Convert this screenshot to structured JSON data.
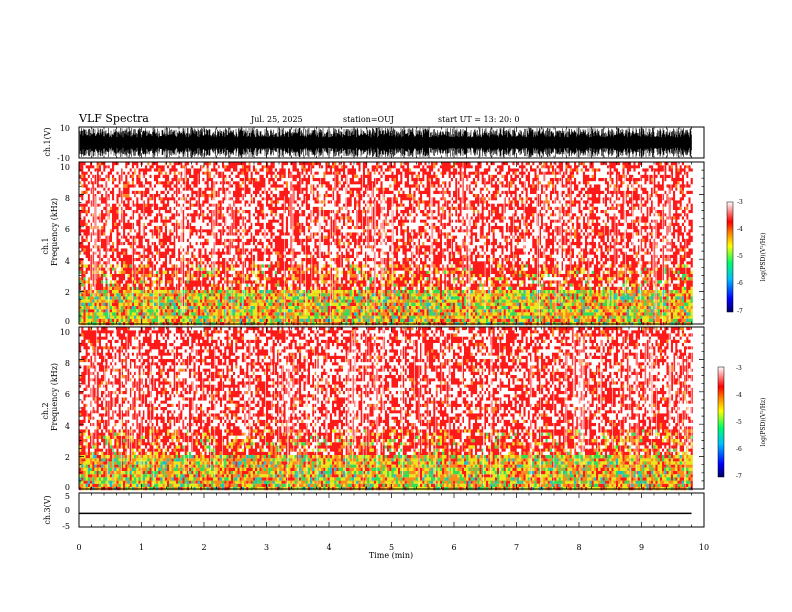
{
  "header": {
    "title": "VLF Spectra",
    "date": "Jul. 25, 2025",
    "station": "station=OUJ",
    "start": "start UT =  13: 20: 0"
  },
  "chart_data": {
    "type": "heatmap",
    "title": "VLF Spectra",
    "xlabel": "Time (min)",
    "x_range": [
      0,
      10
    ],
    "x_ticks": [
      "0",
      "1",
      "2",
      "3",
      "4",
      "5",
      "6",
      "7",
      "8",
      "9",
      "10"
    ],
    "data_end_min": 9.8,
    "panels": [
      {
        "id": "ch1_waveform",
        "type": "line",
        "ylabel": "ch.1(V)",
        "y_range": [
          -10,
          10
        ],
        "y_ticks": [
          "10",
          "-10"
        ],
        "description_value": "dense oscillating waveform saturating near +/-10 V"
      },
      {
        "id": "ch1_spectrogram",
        "type": "heatmap",
        "ylabel_line1": "ch.1",
        "ylabel_line2": "Frequency (kHz)",
        "y_range": [
          0,
          10
        ],
        "y_ticks": [
          "0",
          "2",
          "4",
          "6",
          "8",
          "10"
        ],
        "colorbar": {
          "label": "log(PSD)(V²/Hz)",
          "range": [
            -7,
            -3
          ],
          "ticks": [
            "-3",
            "-4",
            "-5",
            "-6",
            "-7"
          ]
        }
      },
      {
        "id": "ch2_spectrogram",
        "type": "heatmap",
        "ylabel_line1": "ch.2",
        "ylabel_line2": "Frequency (kHz)",
        "y_range": [
          0,
          10
        ],
        "y_ticks": [
          "0",
          "2",
          "4",
          "6",
          "8",
          "10"
        ],
        "colorbar": {
          "label": "log(PSD)(V²/Hz)",
          "range": [
            -7,
            -3
          ],
          "ticks": [
            "-3",
            "-4",
            "-5",
            "-6",
            "-7"
          ]
        }
      },
      {
        "id": "ch3_waveform",
        "type": "line",
        "ylabel": "ch.3(V)",
        "y_range": [
          -5,
          5
        ],
        "y_ticks": [
          "5",
          "0",
          "-5"
        ],
        "value": -1.0
      }
    ],
    "colormap": {
      "name": "rainbow-white",
      "stops": [
        "#000066",
        "#0000ff",
        "#00bfff",
        "#00ff66",
        "#ffff00",
        "#ff8000",
        "#ff0000",
        "#ffffff"
      ]
    }
  }
}
